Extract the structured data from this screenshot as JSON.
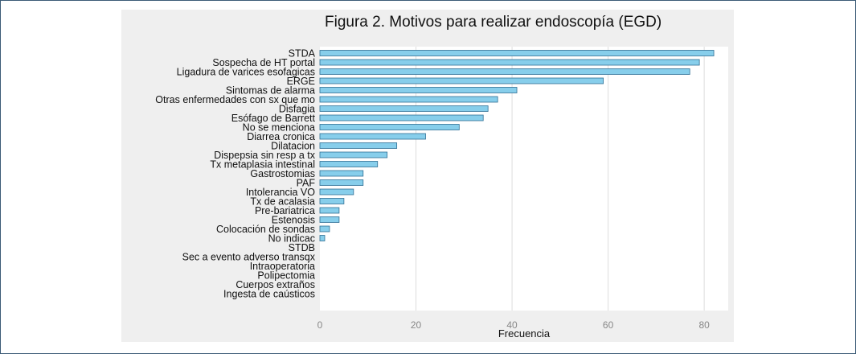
{
  "chart_data": {
    "type": "bar",
    "orientation": "horizontal",
    "title": "Figura 2. Motivos para realizar endoscopía (EGD)",
    "xlabel": "Frecuencia",
    "ylabel": "",
    "xlim": [
      0,
      85
    ],
    "xticks": [
      0,
      20,
      40,
      60,
      80
    ],
    "grid": "vertical",
    "bar_color": "#87ceeb",
    "bar_edge_color": "#2f6f94",
    "categories": [
      "STDA",
      "Sospecha de HT portal",
      "Ligadura de varices esofagicas",
      "ERGE",
      "Sintomas de alarma",
      "Otras enfermedades con sx que mo",
      "Disfagia",
      "Esófago de Barrett",
      "No se menciona",
      "Diarrea cronica",
      "Dilatacion",
      "Dispepsia sin resp a tx",
      "Tx metaplasia intestinal",
      "Gastrostomias",
      "PAF",
      "Intolerancia VO",
      "Tx de acalasia",
      "Pre-bariatrica",
      "Estenosis",
      "Colocación de sondas",
      "No indicac",
      "STDB",
      "Sec a evento adverso transqx",
      "Intraoperatoria",
      "Polipectomia",
      "Cuerpos extraños",
      "Ingesta de caústicos"
    ],
    "values": [
      82,
      79,
      77,
      59,
      41,
      37,
      35,
      34,
      29,
      22,
      16,
      14,
      12,
      9,
      9,
      7,
      5,
      4,
      4,
      2,
      1,
      0,
      0,
      0,
      0,
      0,
      0
    ]
  }
}
